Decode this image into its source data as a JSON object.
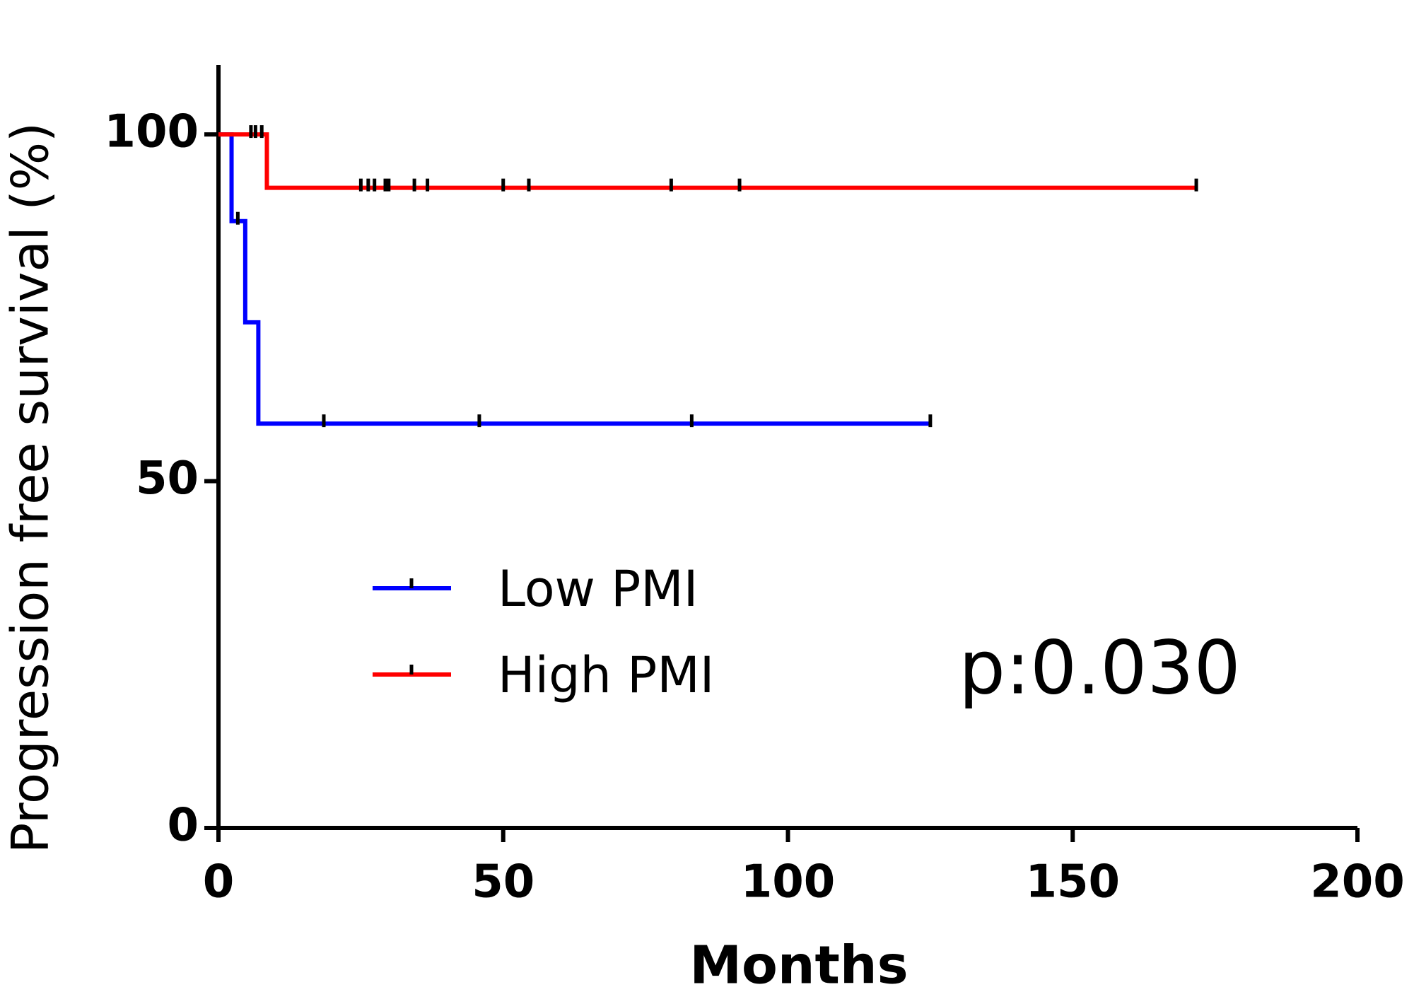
{
  "chart_data": {
    "type": "survival",
    "x_label": "Months",
    "y_label": "Progression free survival (%)",
    "annotation": "p:0.030",
    "xlim": [
      0,
      200
    ],
    "ylim": [
      0,
      110
    ],
    "xticks": [
      0,
      50,
      100,
      150,
      200
    ],
    "yticks": [
      0,
      50,
      100
    ],
    "series": [
      {
        "name": "Low PMI",
        "color": "#0000ff",
        "x": [
          0,
          2.3,
          4.7,
          7,
          125
        ],
        "values": [
          100,
          87.5,
          72.9,
          58.3,
          58.3
        ],
        "censor_x": [
          3.4,
          18.5,
          45.8,
          83.1,
          125
        ],
        "censor_values": [
          87.5,
          58.3,
          58.3,
          58.3,
          58.3
        ]
      },
      {
        "name": "High PMI",
        "color": "#ff0000",
        "x": [
          0,
          8.5,
          171.7
        ],
        "values": [
          100,
          92.3,
          92.3
        ],
        "censor_x": [
          5.7,
          6.5,
          7.6,
          25,
          26.3,
          27.4,
          29.3,
          29.9,
          34.4,
          36.7,
          50,
          54.5,
          79.5,
          91.5,
          171.7
        ],
        "censor_values": [
          100,
          100,
          100,
          92.3,
          92.3,
          92.3,
          92.3,
          92.3,
          92.3,
          92.3,
          92.3,
          92.3,
          92.3,
          92.3,
          92.3
        ]
      }
    ]
  }
}
